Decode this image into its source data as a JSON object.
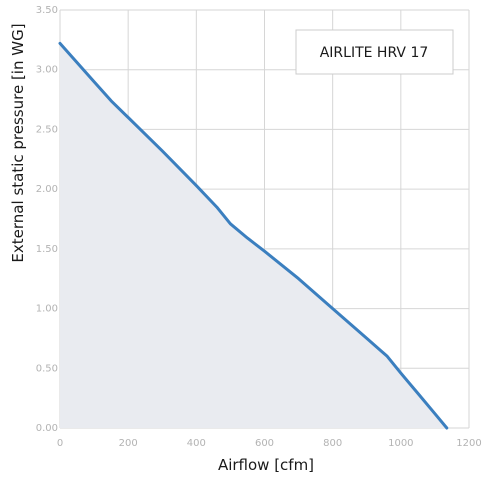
{
  "chart_data": {
    "type": "area",
    "xlabel": "Airflow [cfm]",
    "ylabel": "External static pressure [in WG]",
    "xlim": [
      0,
      1200
    ],
    "ylim": [
      0,
      3.5
    ],
    "x_ticks": [
      "0",
      "200",
      "400",
      "600",
      "800",
      "1000",
      "1200"
    ],
    "x_tick_values": [
      0,
      200,
      400,
      600,
      800,
      1000,
      1200
    ],
    "y_ticks": [
      "0.00",
      "0.50",
      "1.00",
      "1.50",
      "2.00",
      "2.50",
      "3.00",
      "3.50"
    ],
    "y_tick_values": [
      0,
      0.5,
      1.0,
      1.5,
      2.0,
      2.5,
      3.0,
      3.5
    ],
    "grid": true,
    "legend_position": "top-right",
    "series": [
      {
        "name": "AIRLITE HRV 17",
        "color": "#3b7fbf",
        "fill": "#e9ebf0",
        "x": [
          0,
          50,
          100,
          150,
          200,
          300,
          400,
          460,
          500,
          550,
          600,
          700,
          800,
          900,
          960,
          1000,
          1050,
          1100,
          1135
        ],
        "y": [
          3.22,
          3.06,
          2.9,
          2.74,
          2.6,
          2.32,
          2.03,
          1.85,
          1.71,
          1.59,
          1.48,
          1.25,
          1.0,
          0.75,
          0.6,
          0.46,
          0.29,
          0.12,
          0.0
        ]
      }
    ]
  }
}
